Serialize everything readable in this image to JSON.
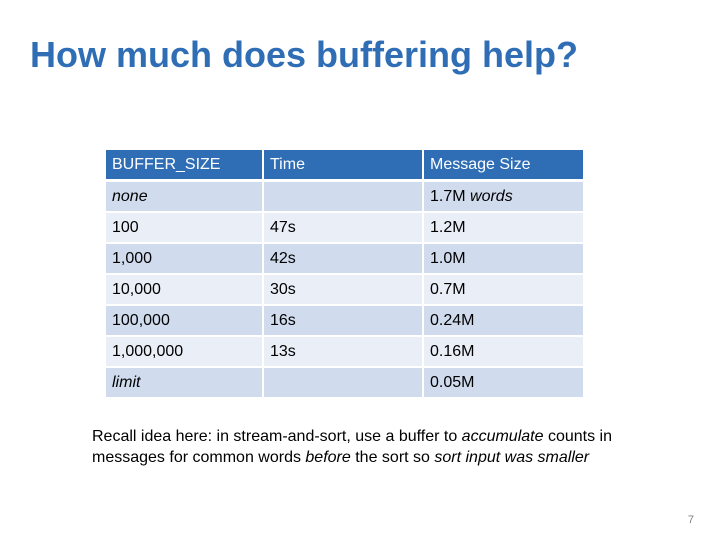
{
  "slide": {
    "title": "How much does buffering help?",
    "page_number": "7",
    "accent_color": "#2f6db5"
  },
  "table": {
    "headers": [
      "BUFFER_SIZE",
      "Time",
      "Message Size"
    ],
    "rows": [
      {
        "buffer_size": "none",
        "time": "",
        "message_size": "1.7M",
        "message_suffix": " words"
      },
      {
        "buffer_size": "100",
        "time": "47s",
        "message_size": "1.2M",
        "message_suffix": ""
      },
      {
        "buffer_size": "1,000",
        "time": "42s",
        "message_size": "1.0M",
        "message_suffix": ""
      },
      {
        "buffer_size": "10,000",
        "time": "30s",
        "message_size": "0.7M",
        "message_suffix": ""
      },
      {
        "buffer_size": "100,000",
        "time": "16s",
        "message_size": "0.24M",
        "message_suffix": ""
      },
      {
        "buffer_size": "1,000,000",
        "time": "13s",
        "message_size": "0.16M",
        "message_suffix": ""
      },
      {
        "buffer_size": "limit",
        "time": "",
        "message_size": "0.05M",
        "message_suffix": ""
      }
    ]
  },
  "note": {
    "t1": "Recall idea here: in stream-and-sort, use a buffer to ",
    "t2": "accumulate",
    "t3": " counts in messages for common words ",
    "t4": "before",
    "t5": " the sort so ",
    "t6": "sort input was smaller"
  }
}
